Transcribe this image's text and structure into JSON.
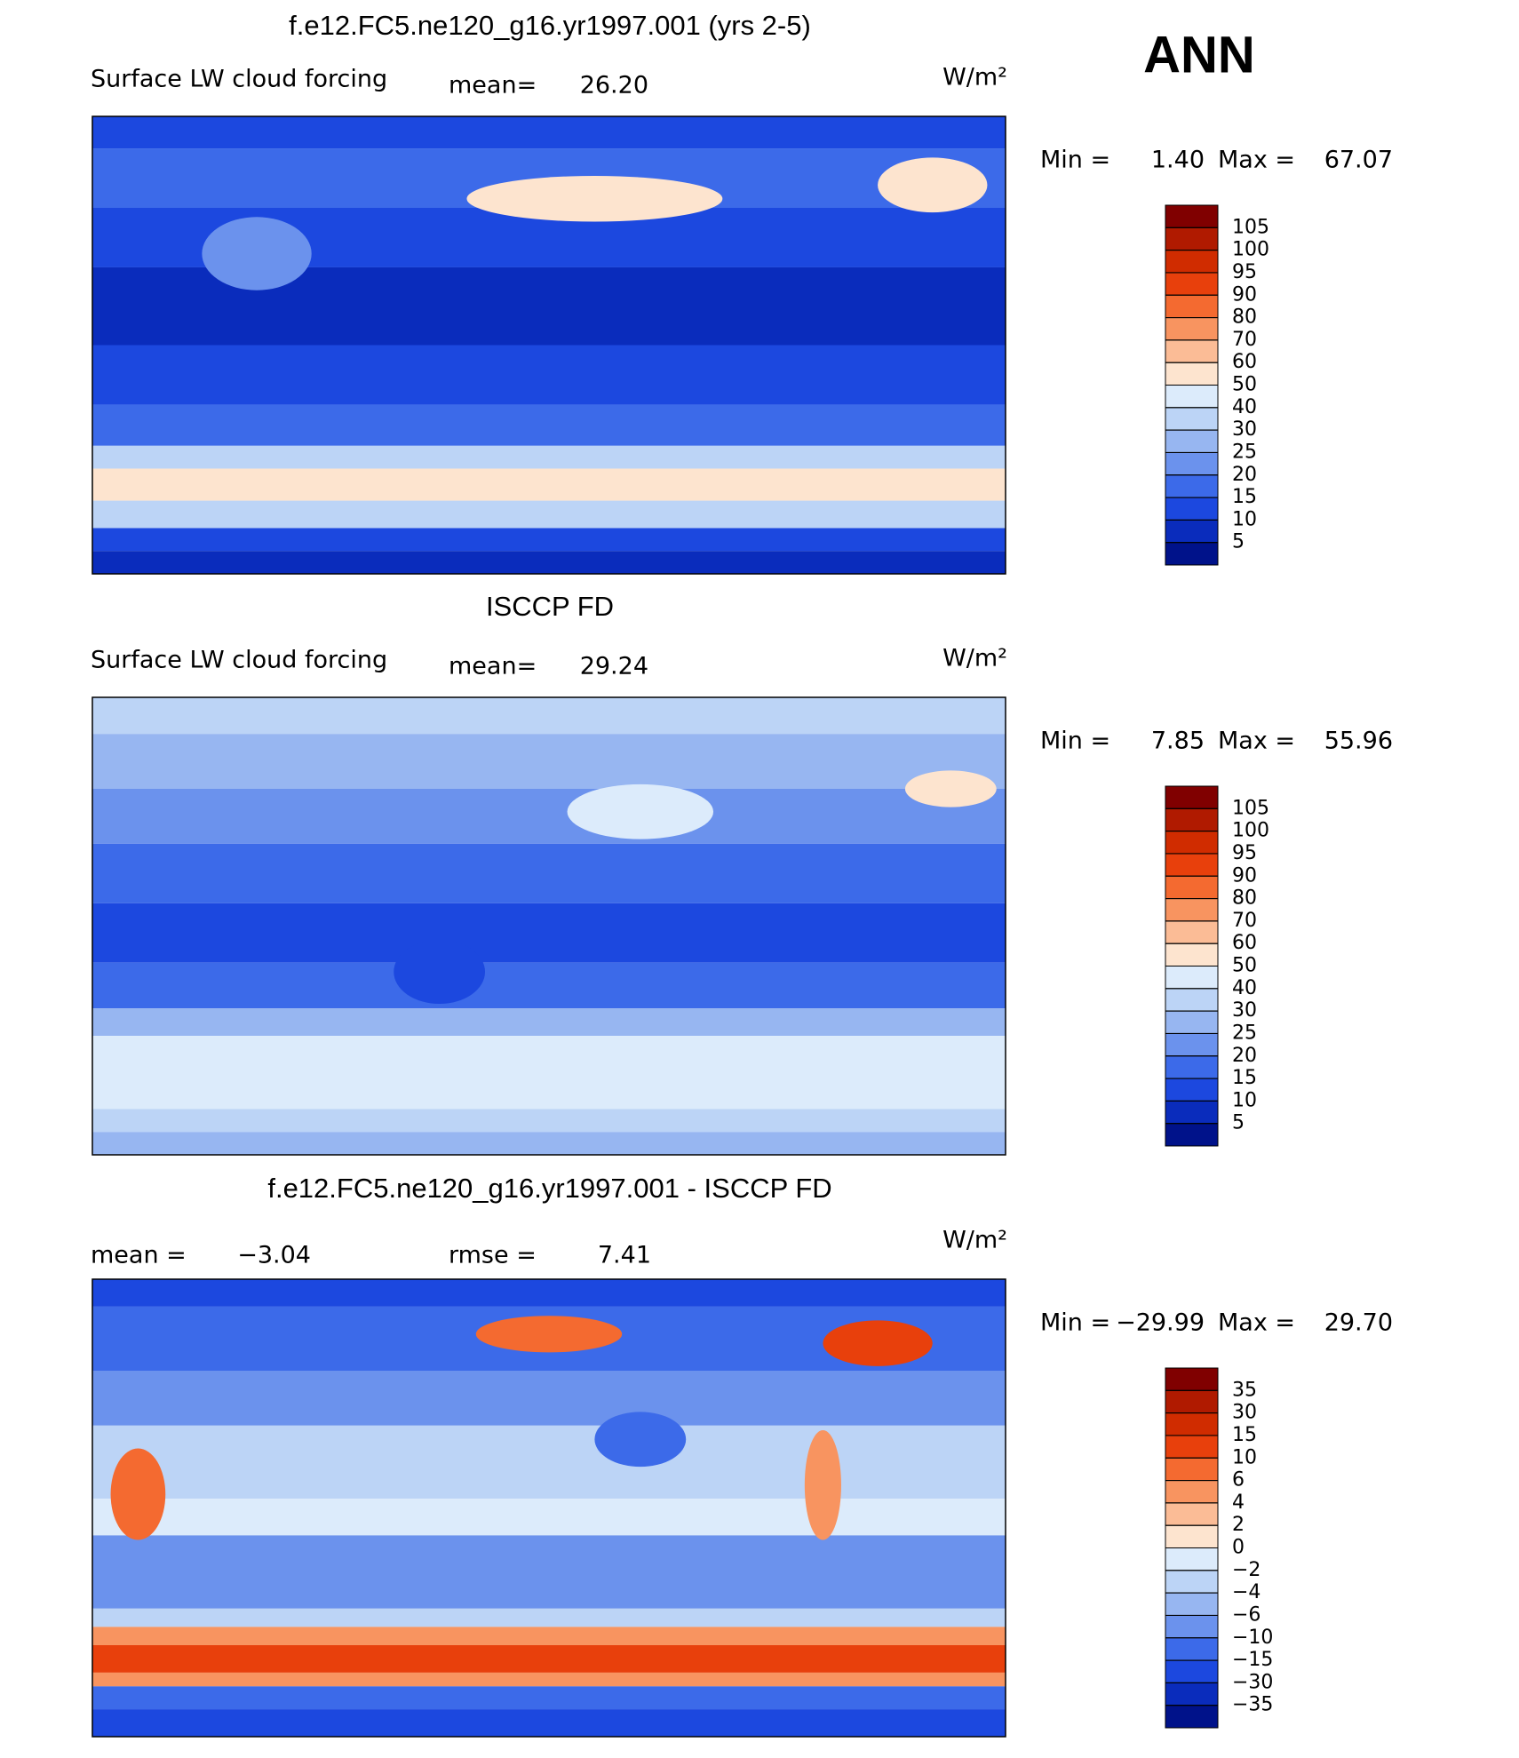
{
  "title": "ANN",
  "panels": [
    {
      "title": "f.e12.FC5.ne120_g16.yr1997.001 (yrs 2-5)",
      "left_label": "Surface LW cloud forcing",
      "stat1_label": "mean=",
      "stat1_value": "26.20",
      "units": "W/m²",
      "min_label": "Min =",
      "min_value": "1.40",
      "max_label": "Max =",
      "max_value": "67.07",
      "levels": [
        "105",
        "100",
        "95",
        "90",
        "80",
        "70",
        "60",
        "50",
        "40",
        "30",
        "25",
        "20",
        "15",
        "10",
        "5"
      ],
      "colors": [
        "#800000",
        "#b01a00",
        "#d02c00",
        "#e8400c",
        "#f46a30",
        "#f89460",
        "#fbbc96",
        "#fde4cf",
        "#dcebfb",
        "#bcd4f6",
        "#97b6f1",
        "#6b92ed",
        "#3c6ae9",
        "#1c48df",
        "#0a2cbc",
        "#00128a"
      ]
    },
    {
      "title": "ISCCP FD",
      "left_label": "Surface LW cloud forcing",
      "stat1_label": "mean=",
      "stat1_value": "29.24",
      "units": "W/m²",
      "min_label": "Min =",
      "min_value": "7.85",
      "max_label": "Max =",
      "max_value": "55.96",
      "levels": [
        "105",
        "100",
        "95",
        "90",
        "80",
        "70",
        "60",
        "50",
        "40",
        "30",
        "25",
        "20",
        "15",
        "10",
        "5"
      ],
      "colors": [
        "#800000",
        "#b01a00",
        "#d02c00",
        "#e8400c",
        "#f46a30",
        "#f89460",
        "#fbbc96",
        "#fde4cf",
        "#dcebfb",
        "#bcd4f6",
        "#97b6f1",
        "#6b92ed",
        "#3c6ae9",
        "#1c48df",
        "#0a2cbc",
        "#00128a"
      ]
    },
    {
      "title": "f.e12.FC5.ne120_g16.yr1997.001 - ISCCP FD",
      "stat1_label": "mean =",
      "stat1_value": "−3.04",
      "stat2_label": "rmse =",
      "stat2_value": "7.41",
      "units": "W/m²",
      "min_label": "Min =",
      "min_value": "−29.99",
      "max_label": "Max =",
      "max_value": "29.70",
      "levels": [
        "35",
        "30",
        "15",
        "10",
        "6",
        "4",
        "2",
        "0",
        "−2",
        "−4",
        "−6",
        "−10",
        "−15",
        "−30",
        "−35"
      ],
      "colors": [
        "#800000",
        "#b01a00",
        "#d02c00",
        "#e8400c",
        "#f46a30",
        "#f89460",
        "#fbbc96",
        "#fde4cf",
        "#dcebfb",
        "#bcd4f6",
        "#97b6f1",
        "#6b92ed",
        "#3c6ae9",
        "#1c48df",
        "#0a2cbc",
        "#00128a"
      ]
    }
  ]
}
